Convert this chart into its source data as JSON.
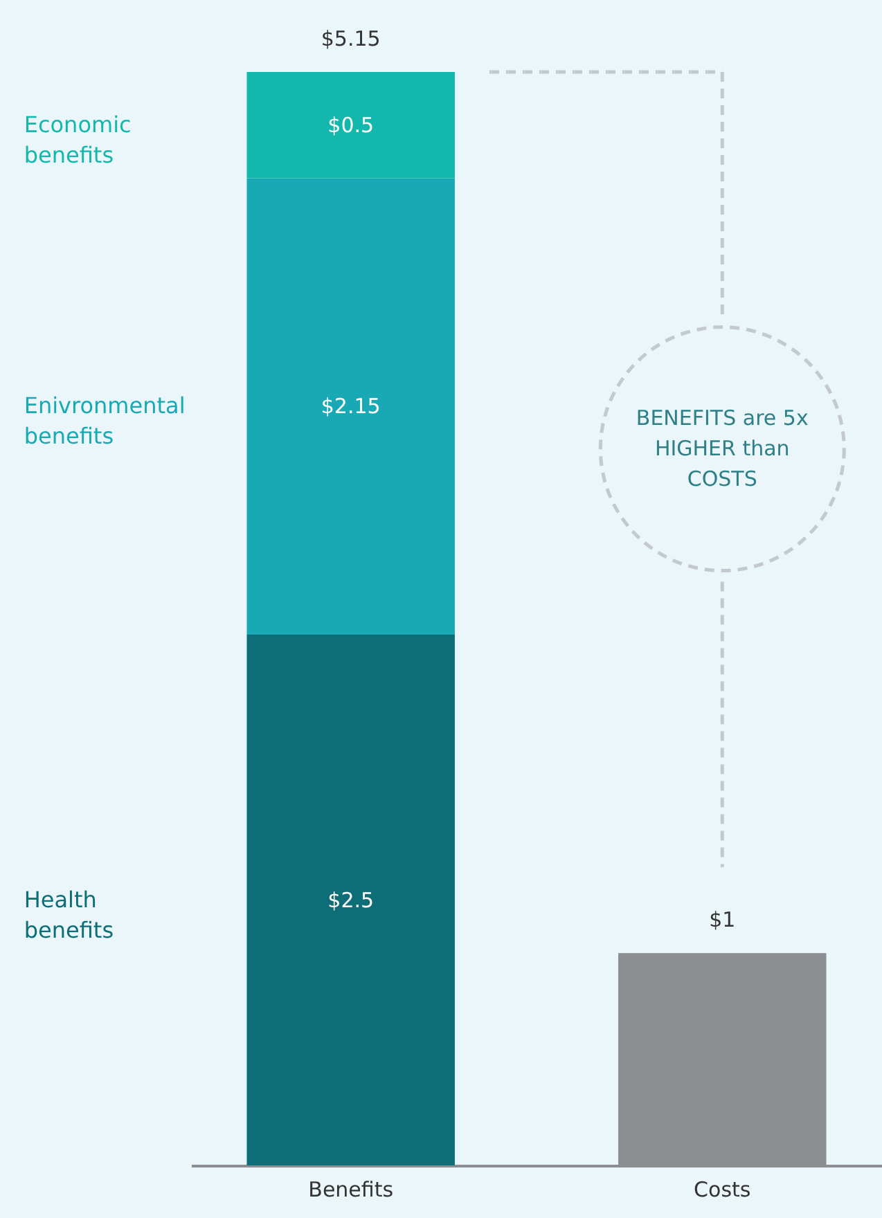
{
  "chart_data": {
    "type": "bar",
    "stacked": true,
    "categories": [
      "Benefits",
      "Costs"
    ],
    "series": [
      {
        "name": "Health benefits",
        "color": "#0d6e77",
        "values": [
          2.5,
          null
        ],
        "value_labels": [
          "$2.5",
          null
        ]
      },
      {
        "name": "Enivronmental benefits",
        "color": "#19a9b4",
        "values": [
          2.15,
          null
        ],
        "value_labels": [
          "$2.15",
          null
        ]
      },
      {
        "name": "Economic benefits",
        "color": "#12b8ab",
        "values": [
          0.5,
          null
        ],
        "value_labels": [
          "$0.5",
          null
        ]
      },
      {
        "color": "#8c8e91",
        "values": [
          null,
          1
        ]
      }
    ],
    "totals": [
      "$5.15",
      "$1"
    ],
    "annotations": [
      "BENEFITS are 5x HIGHER than COSTS"
    ],
    "tick_labels": "x",
    "grid": false,
    "legend": false
  }
}
